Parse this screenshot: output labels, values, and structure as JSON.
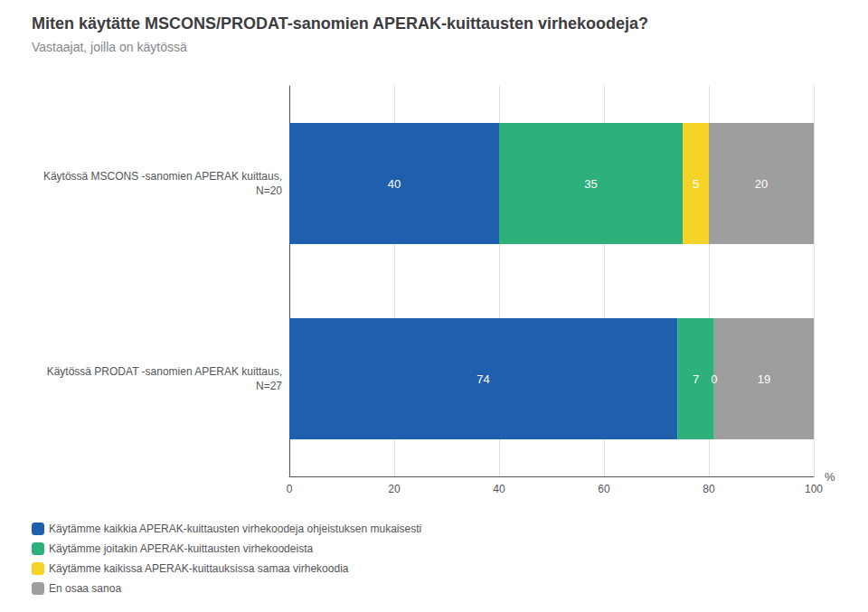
{
  "chart_data": {
    "type": "bar",
    "orientation": "horizontal",
    "stacked": true,
    "title": "Miten käytätte MSCONS/PRODAT-sanomien APERAK-kuittausten virhekoodeja?",
    "subtitle": "Vastaajat, joilla on käytössä",
    "categories": [
      "Käytössä MSCONS -sanomien APERAK kuittaus,\nN=20",
      "Käytössä PRODAT -sanomien APERAK kuittaus,\nN=27"
    ],
    "series": [
      {
        "name": "Käytämme kaikkia APERAK-kuittausten virhekoodeja ohjeistuksen mukaisesti",
        "values": [
          40,
          74
        ],
        "color": "#1F5FAD"
      },
      {
        "name": "Käytämme joitakin APERAK-kuittausten virhekoodeista",
        "values": [
          35,
          7
        ],
        "color": "#2EB07A"
      },
      {
        "name": "Käytämme kaikissa APERAK-kuittauksissa samaa virhekoodia",
        "values": [
          5,
          0
        ],
        "color": "#F5D327"
      },
      {
        "name": "En osaa sanoa",
        "values": [
          20,
          19
        ],
        "color": "#9E9E9E"
      }
    ],
    "xlabel": "%",
    "xlim": [
      0,
      100
    ],
    "xticks": [
      0,
      20,
      40,
      60,
      80,
      100
    ],
    "grid": true,
    "legend": "bottom left",
    "data_labels": true
  }
}
